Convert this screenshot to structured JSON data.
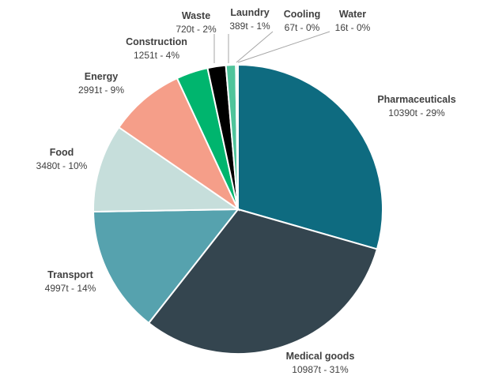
{
  "chart_data": {
    "type": "pie",
    "title": "",
    "start": "top, clockwise",
    "unit": "t",
    "slices": [
      {
        "name": "Pharmaceuticals",
        "value": 10390,
        "label": "10390t - 29%",
        "color": "#0e6b80"
      },
      {
        "name": "Medical goods",
        "value": 10987,
        "label": "10987t - 31%",
        "color": "#34454f"
      },
      {
        "name": "Transport",
        "value": 4997,
        "label": "4997t - 14%",
        "color": "#56a2ae"
      },
      {
        "name": "Food",
        "value": 3480,
        "label": "3480t - 10%",
        "color": "#c6dedb"
      },
      {
        "name": "Energy",
        "value": 2991,
        "label": "2991t - 9%",
        "color": "#f59e89"
      },
      {
        "name": "Construction",
        "value": 1251,
        "label": "1251t - 4%",
        "color": "#00b56e"
      },
      {
        "name": "Waste",
        "value": 720,
        "label": "720t - 2%",
        "color": "#000000"
      },
      {
        "name": "Laundry",
        "value": 389,
        "label": "389t - 1%",
        "color": "#4fc49b"
      },
      {
        "name": "Cooling",
        "value": 67,
        "label": "67t - 0%",
        "color": "#7fd3b5"
      },
      {
        "name": "Water",
        "value": 16,
        "label": "16t - 0%",
        "color": "#a8e0cc"
      }
    ]
  }
}
